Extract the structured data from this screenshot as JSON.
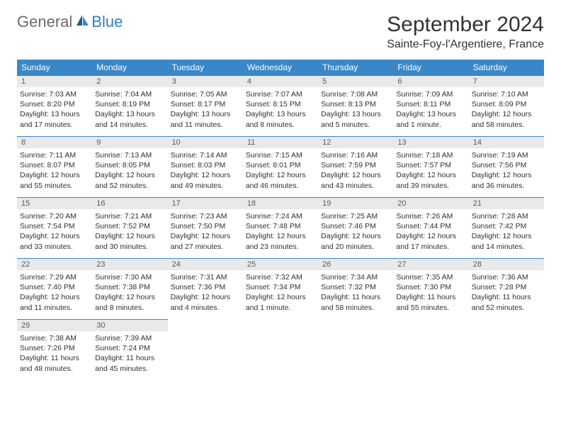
{
  "logo": {
    "text_general": "General",
    "text_blue": "Blue"
  },
  "header": {
    "month_title": "September 2024",
    "location": "Sainte-Foy-l'Argentiere, France"
  },
  "colors": {
    "header_bg": "#3a87c8",
    "header_text": "#ffffff",
    "daynum_bg": "#e9e9e9",
    "daynum_text": "#5a5a5a",
    "body_text": "#303030",
    "border": "#3a87c8",
    "logo_gray": "#6b6b6b",
    "logo_blue": "#2f7dc4"
  },
  "layout": {
    "columns": 7,
    "rows": 5,
    "cell_min_height": 86,
    "font_family": "Arial"
  },
  "calendar": {
    "day_headers": [
      "Sunday",
      "Monday",
      "Tuesday",
      "Wednesday",
      "Thursday",
      "Friday",
      "Saturday"
    ],
    "days": [
      {
        "num": "1",
        "sunrise": "Sunrise: 7:03 AM",
        "sunset": "Sunset: 8:20 PM",
        "daylight1": "Daylight: 13 hours",
        "daylight2": "and 17 minutes."
      },
      {
        "num": "2",
        "sunrise": "Sunrise: 7:04 AM",
        "sunset": "Sunset: 8:19 PM",
        "daylight1": "Daylight: 13 hours",
        "daylight2": "and 14 minutes."
      },
      {
        "num": "3",
        "sunrise": "Sunrise: 7:05 AM",
        "sunset": "Sunset: 8:17 PM",
        "daylight1": "Daylight: 13 hours",
        "daylight2": "and 11 minutes."
      },
      {
        "num": "4",
        "sunrise": "Sunrise: 7:07 AM",
        "sunset": "Sunset: 8:15 PM",
        "daylight1": "Daylight: 13 hours",
        "daylight2": "and 8 minutes."
      },
      {
        "num": "5",
        "sunrise": "Sunrise: 7:08 AM",
        "sunset": "Sunset: 8:13 PM",
        "daylight1": "Daylight: 13 hours",
        "daylight2": "and 5 minutes."
      },
      {
        "num": "6",
        "sunrise": "Sunrise: 7:09 AM",
        "sunset": "Sunset: 8:11 PM",
        "daylight1": "Daylight: 13 hours",
        "daylight2": "and 1 minute."
      },
      {
        "num": "7",
        "sunrise": "Sunrise: 7:10 AM",
        "sunset": "Sunset: 8:09 PM",
        "daylight1": "Daylight: 12 hours",
        "daylight2": "and 58 minutes."
      },
      {
        "num": "8",
        "sunrise": "Sunrise: 7:11 AM",
        "sunset": "Sunset: 8:07 PM",
        "daylight1": "Daylight: 12 hours",
        "daylight2": "and 55 minutes."
      },
      {
        "num": "9",
        "sunrise": "Sunrise: 7:13 AM",
        "sunset": "Sunset: 8:05 PM",
        "daylight1": "Daylight: 12 hours",
        "daylight2": "and 52 minutes."
      },
      {
        "num": "10",
        "sunrise": "Sunrise: 7:14 AM",
        "sunset": "Sunset: 8:03 PM",
        "daylight1": "Daylight: 12 hours",
        "daylight2": "and 49 minutes."
      },
      {
        "num": "11",
        "sunrise": "Sunrise: 7:15 AM",
        "sunset": "Sunset: 8:01 PM",
        "daylight1": "Daylight: 12 hours",
        "daylight2": "and 46 minutes."
      },
      {
        "num": "12",
        "sunrise": "Sunrise: 7:16 AM",
        "sunset": "Sunset: 7:59 PM",
        "daylight1": "Daylight: 12 hours",
        "daylight2": "and 43 minutes."
      },
      {
        "num": "13",
        "sunrise": "Sunrise: 7:18 AM",
        "sunset": "Sunset: 7:57 PM",
        "daylight1": "Daylight: 12 hours",
        "daylight2": "and 39 minutes."
      },
      {
        "num": "14",
        "sunrise": "Sunrise: 7:19 AM",
        "sunset": "Sunset: 7:56 PM",
        "daylight1": "Daylight: 12 hours",
        "daylight2": "and 36 minutes."
      },
      {
        "num": "15",
        "sunrise": "Sunrise: 7:20 AM",
        "sunset": "Sunset: 7:54 PM",
        "daylight1": "Daylight: 12 hours",
        "daylight2": "and 33 minutes."
      },
      {
        "num": "16",
        "sunrise": "Sunrise: 7:21 AM",
        "sunset": "Sunset: 7:52 PM",
        "daylight1": "Daylight: 12 hours",
        "daylight2": "and 30 minutes."
      },
      {
        "num": "17",
        "sunrise": "Sunrise: 7:23 AM",
        "sunset": "Sunset: 7:50 PM",
        "daylight1": "Daylight: 12 hours",
        "daylight2": "and 27 minutes."
      },
      {
        "num": "18",
        "sunrise": "Sunrise: 7:24 AM",
        "sunset": "Sunset: 7:48 PM",
        "daylight1": "Daylight: 12 hours",
        "daylight2": "and 23 minutes."
      },
      {
        "num": "19",
        "sunrise": "Sunrise: 7:25 AM",
        "sunset": "Sunset: 7:46 PM",
        "daylight1": "Daylight: 12 hours",
        "daylight2": "and 20 minutes."
      },
      {
        "num": "20",
        "sunrise": "Sunrise: 7:26 AM",
        "sunset": "Sunset: 7:44 PM",
        "daylight1": "Daylight: 12 hours",
        "daylight2": "and 17 minutes."
      },
      {
        "num": "21",
        "sunrise": "Sunrise: 7:28 AM",
        "sunset": "Sunset: 7:42 PM",
        "daylight1": "Daylight: 12 hours",
        "daylight2": "and 14 minutes."
      },
      {
        "num": "22",
        "sunrise": "Sunrise: 7:29 AM",
        "sunset": "Sunset: 7:40 PM",
        "daylight1": "Daylight: 12 hours",
        "daylight2": "and 11 minutes."
      },
      {
        "num": "23",
        "sunrise": "Sunrise: 7:30 AM",
        "sunset": "Sunset: 7:38 PM",
        "daylight1": "Daylight: 12 hours",
        "daylight2": "and 8 minutes."
      },
      {
        "num": "24",
        "sunrise": "Sunrise: 7:31 AM",
        "sunset": "Sunset: 7:36 PM",
        "daylight1": "Daylight: 12 hours",
        "daylight2": "and 4 minutes."
      },
      {
        "num": "25",
        "sunrise": "Sunrise: 7:32 AM",
        "sunset": "Sunset: 7:34 PM",
        "daylight1": "Daylight: 12 hours",
        "daylight2": "and 1 minute."
      },
      {
        "num": "26",
        "sunrise": "Sunrise: 7:34 AM",
        "sunset": "Sunset: 7:32 PM",
        "daylight1": "Daylight: 11 hours",
        "daylight2": "and 58 minutes."
      },
      {
        "num": "27",
        "sunrise": "Sunrise: 7:35 AM",
        "sunset": "Sunset: 7:30 PM",
        "daylight1": "Daylight: 11 hours",
        "daylight2": "and 55 minutes."
      },
      {
        "num": "28",
        "sunrise": "Sunrise: 7:36 AM",
        "sunset": "Sunset: 7:28 PM",
        "daylight1": "Daylight: 11 hours",
        "daylight2": "and 52 minutes."
      },
      {
        "num": "29",
        "sunrise": "Sunrise: 7:38 AM",
        "sunset": "Sunset: 7:26 PM",
        "daylight1": "Daylight: 11 hours",
        "daylight2": "and 48 minutes."
      },
      {
        "num": "30",
        "sunrise": "Sunrise: 7:39 AM",
        "sunset": "Sunset: 7:24 PM",
        "daylight1": "Daylight: 11 hours",
        "daylight2": "and 45 minutes."
      }
    ]
  }
}
